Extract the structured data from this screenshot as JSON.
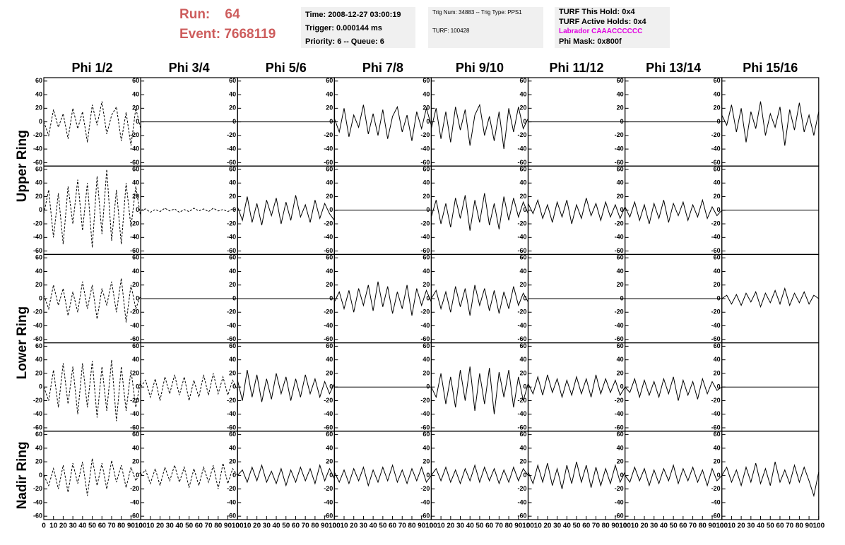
{
  "header": {
    "run": "Run:    64",
    "event": "Event: 7668119",
    "box1": [
      "Time: 2008-12-27 03:00:19",
      "Trigger: 0.000144 ms",
      "Priority: 6 -- Queue: 6"
    ],
    "box2": [
      "Trig Num: 34883 -- Trig Type: PPS1",
      "TURF: 100428"
    ],
    "box3": [
      "TURF This Hold: 0x4",
      "TURF Active Holds: 0x4",
      "Labrador CAAACCCCCC",
      "Phi Mask: 0x800f"
    ]
  },
  "chart_data": {
    "type": "line",
    "columns": [
      "Phi 1/2",
      "Phi 3/4",
      "Phi 5/6",
      "Phi 7/8",
      "Phi 9/10",
      "Phi 11/12",
      "Phi 13/14",
      "Phi 15/16"
    ],
    "ring_labels": [
      "Upper Ring",
      "Lower Ring",
      "Nadir Ring"
    ],
    "color": "#000000",
    "xlim": [
      0,
      100
    ],
    "xticks": [
      0,
      10,
      20,
      30,
      40,
      50,
      60,
      70,
      80,
      90,
      100
    ],
    "ylim": [
      -65,
      65
    ],
    "yticks": [
      -60,
      -40,
      -20,
      0,
      20,
      40,
      60
    ],
    "x": [
      0,
      5,
      10,
      15,
      20,
      25,
      30,
      35,
      40,
      45,
      50,
      55,
      60,
      65,
      70,
      75,
      80,
      85,
      90,
      95,
      100
    ],
    "panels": [
      [
        {
          "dashed": true,
          "values": [
            0,
            -20,
            18,
            -8,
            12,
            -25,
            20,
            -10,
            15,
            -30,
            25,
            -5,
            30,
            -18,
            10,
            22,
            -28,
            14,
            -35,
            20,
            -10
          ]
        },
        {
          "dashed": false,
          "values": [
            0,
            0,
            0,
            0,
            0,
            0,
            0,
            0,
            0,
            0,
            0,
            0,
            0,
            0,
            0,
            0,
            0,
            0,
            0,
            0,
            0
          ]
        },
        {
          "dashed": false,
          "values": [
            0,
            0,
            0,
            0,
            0,
            0,
            0,
            0,
            0,
            0,
            0,
            0,
            0,
            0,
            0,
            0,
            0,
            0,
            0,
            0,
            0
          ]
        },
        {
          "dashed": false,
          "values": [
            5,
            -15,
            20,
            -22,
            10,
            -8,
            25,
            -18,
            12,
            -20,
            18,
            -25,
            8,
            22,
            -15,
            10,
            -28,
            15,
            -10,
            20,
            -5
          ]
        },
        {
          "dashed": false,
          "values": [
            -10,
            20,
            -25,
            15,
            -30,
            22,
            -12,
            18,
            -35,
            10,
            25,
            -20,
            8,
            -28,
            15,
            -40,
            20,
            -15,
            22,
            -10,
            5
          ]
        },
        {
          "dashed": false,
          "values": [
            0,
            0,
            0,
            0,
            0,
            0,
            0,
            0,
            0,
            0,
            0,
            0,
            0,
            0,
            0,
            0,
            0,
            0,
            0,
            0,
            0
          ]
        },
        {
          "dashed": false,
          "values": [
            0,
            0,
            0,
            0,
            0,
            0,
            0,
            0,
            0,
            0,
            0,
            0,
            0,
            0,
            0,
            0,
            0,
            0,
            0,
            0,
            0
          ]
        },
        {
          "dashed": false,
          "values": [
            10,
            -5,
            25,
            -15,
            20,
            -30,
            15,
            -10,
            30,
            -20,
            12,
            -8,
            22,
            -35,
            18,
            -12,
            28,
            -15,
            10,
            -20,
            15
          ]
        }
      ],
      [
        {
          "dashed": true,
          "values": [
            -5,
            30,
            -40,
            25,
            -50,
            35,
            -20,
            45,
            -30,
            40,
            -55,
            50,
            -35,
            60,
            -45,
            30,
            -50,
            40,
            -25,
            35,
            -10
          ]
        },
        {
          "dashed": true,
          "values": [
            0,
            2,
            -3,
            1,
            -2,
            3,
            -1,
            2,
            -3,
            1,
            -2,
            3,
            -1,
            2,
            -2,
            3,
            -1,
            1,
            -2,
            2,
            0
          ]
        },
        {
          "dashed": false,
          "values": [
            5,
            -15,
            20,
            -18,
            10,
            -22,
            15,
            -8,
            18,
            -20,
            12,
            -15,
            22,
            -10,
            8,
            -18,
            15,
            -12,
            10,
            -5,
            -15
          ]
        },
        {
          "dashed": false,
          "values": [
            0,
            0,
            0,
            0,
            0,
            0,
            0,
            0,
            0,
            0,
            0,
            0,
            0,
            0,
            0,
            0,
            0,
            0,
            0,
            0,
            0
          ]
        },
        {
          "dashed": false,
          "values": [
            -10,
            15,
            -20,
            10,
            -25,
            18,
            -12,
            22,
            -30,
            15,
            -18,
            25,
            -22,
            10,
            -28,
            20,
            -15,
            18,
            -10,
            12,
            -5
          ]
        },
        {
          "dashed": false,
          "values": [
            10,
            -5,
            15,
            -12,
            8,
            -18,
            12,
            -10,
            15,
            -20,
            8,
            -12,
            18,
            -8,
            10,
            -15,
            12,
            -10,
            8,
            -12,
            5
          ]
        },
        {
          "dashed": false,
          "values": [
            5,
            -10,
            12,
            -15,
            8,
            -20,
            10,
            -12,
            15,
            -18,
            10,
            -8,
            12,
            -15,
            8,
            -10,
            15,
            -12,
            5,
            -8,
            0
          ]
        },
        {
          "dashed": false,
          "values": [
            0,
            0,
            0,
            0,
            0,
            0,
            0,
            0,
            0,
            0,
            0,
            0,
            0,
            0,
            0,
            0,
            0,
            0,
            0,
            0,
            0
          ]
        }
      ],
      [
        {
          "dashed": true,
          "values": [
            5,
            -15,
            20,
            -10,
            15,
            -25,
            10,
            -20,
            25,
            -15,
            20,
            -30,
            15,
            -10,
            25,
            -20,
            30,
            -35,
            20,
            -15,
            5
          ]
        },
        {
          "dashed": false,
          "values": [
            0,
            0,
            0,
            0,
            0,
            0,
            0,
            0,
            0,
            0,
            0,
            0,
            0,
            0,
            0,
            0,
            0,
            0,
            0,
            0,
            0
          ]
        },
        {
          "dashed": false,
          "values": [
            0,
            0,
            0,
            0,
            0,
            0,
            0,
            0,
            0,
            0,
            0,
            0,
            0,
            0,
            0,
            0,
            0,
            0,
            0,
            0,
            0
          ]
        },
        {
          "dashed": false,
          "values": [
            -5,
            10,
            -15,
            12,
            -20,
            15,
            -10,
            20,
            -18,
            25,
            -12,
            18,
            -22,
            10,
            -15,
            20,
            -25,
            15,
            -10,
            12,
            -5
          ]
        },
        {
          "dashed": false,
          "values": [
            0,
            12,
            -15,
            10,
            -20,
            18,
            -12,
            15,
            -25,
            20,
            -10,
            15,
            -18,
            12,
            -22,
            10,
            -15,
            18,
            -10,
            8,
            -5
          ]
        },
        {
          "dashed": false,
          "values": [
            0,
            0,
            0,
            0,
            0,
            0,
            0,
            0,
            0,
            0,
            0,
            0,
            0,
            0,
            0,
            0,
            0,
            0,
            0,
            0,
            0
          ]
        },
        {
          "dashed": false,
          "values": [
            0,
            0,
            0,
            0,
            0,
            0,
            0,
            0,
            0,
            0,
            0,
            0,
            0,
            0,
            0,
            0,
            0,
            0,
            0,
            0,
            0
          ]
        },
        {
          "dashed": false,
          "values": [
            0,
            5,
            -8,
            6,
            -10,
            8,
            -5,
            10,
            -12,
            8,
            -6,
            12,
            -8,
            15,
            -10,
            8,
            -6,
            10,
            -8,
            5,
            0
          ]
        }
      ],
      [
        {
          "dashed": true,
          "values": [
            0,
            -20,
            25,
            -30,
            35,
            -25,
            30,
            -40,
            35,
            -30,
            38,
            -45,
            30,
            -35,
            40,
            -50,
            30,
            -35,
            25,
            -30,
            10
          ]
        },
        {
          "dashed": true,
          "values": [
            0,
            10,
            -15,
            12,
            -20,
            15,
            -10,
            18,
            -12,
            15,
            -20,
            10,
            -15,
            18,
            -12,
            20,
            -10,
            15,
            -12,
            10,
            -5
          ]
        },
        {
          "dashed": false,
          "values": [
            10,
            -20,
            25,
            -15,
            18,
            -22,
            12,
            -18,
            20,
            -10,
            15,
            -20,
            12,
            -15,
            18,
            -10,
            12,
            -15,
            8,
            -10,
            5
          ]
        },
        {
          "dashed": false,
          "values": [
            0,
            0,
            0,
            0,
            0,
            0,
            0,
            0,
            0,
            0,
            0,
            0,
            0,
            0,
            0,
            0,
            0,
            0,
            0,
            0,
            0
          ]
        },
        {
          "dashed": false,
          "values": [
            0,
            -15,
            20,
            -25,
            15,
            -30,
            25,
            -20,
            30,
            -35,
            20,
            -25,
            28,
            -40,
            22,
            -15,
            25,
            -30,
            15,
            -20,
            5
          ]
        },
        {
          "dashed": false,
          "values": [
            5,
            -10,
            15,
            -12,
            18,
            -8,
            12,
            -15,
            10,
            -12,
            15,
            -10,
            12,
            -15,
            18,
            -10,
            12,
            -8,
            10,
            -12,
            0
          ]
        },
        {
          "dashed": false,
          "values": [
            0,
            -8,
            12,
            -15,
            10,
            -12,
            8,
            -15,
            12,
            -10,
            15,
            -20,
            10,
            -12,
            8,
            -18,
            12,
            -10,
            8,
            -5,
            0
          ]
        },
        {
          "dashed": false,
          "values": [
            0,
            0,
            0,
            0,
            0,
            0,
            0,
            0,
            0,
            0,
            0,
            0,
            0,
            0,
            0,
            0,
            0,
            0,
            0,
            0,
            0
          ]
        }
      ],
      [
        {
          "dashed": true,
          "values": [
            0,
            -15,
            10,
            -20,
            15,
            -25,
            18,
            -12,
            20,
            -30,
            25,
            -15,
            18,
            -20,
            22,
            -10,
            15,
            -18,
            12,
            -8,
            5
          ]
        },
        {
          "dashed": true,
          "values": [
            0,
            8,
            -12,
            10,
            -15,
            12,
            -8,
            15,
            -10,
            12,
            -18,
            10,
            -15,
            12,
            -10,
            15,
            -20,
            18,
            -12,
            10,
            0
          ]
        },
        {
          "dashed": false,
          "values": [
            0,
            8,
            -10,
            12,
            -8,
            15,
            -10,
            6,
            -12,
            10,
            -15,
            8,
            -10,
            12,
            -8,
            10,
            -12,
            15,
            -8,
            10,
            -5
          ]
        },
        {
          "dashed": false,
          "values": [
            5,
            -10,
            8,
            -12,
            10,
            -8,
            12,
            -15,
            8,
            -10,
            12,
            -8,
            15,
            -10,
            8,
            -12,
            10,
            -8,
            12,
            -10,
            0
          ]
        },
        {
          "dashed": false,
          "values": [
            0,
            10,
            -8,
            12,
            -10,
            8,
            -12,
            10,
            -8,
            15,
            -10,
            12,
            -8,
            10,
            -12,
            8,
            -10,
            12,
            -8,
            10,
            0
          ]
        },
        {
          "dashed": false,
          "values": [
            5,
            -12,
            15,
            -10,
            18,
            -15,
            10,
            -20,
            15,
            -12,
            20,
            -10,
            15,
            -18,
            12,
            -15,
            10,
            -12,
            15,
            -10,
            5
          ]
        },
        {
          "dashed": false,
          "values": [
            0,
            -10,
            12,
            -8,
            10,
            -15,
            8,
            -12,
            10,
            -8,
            15,
            -12,
            10,
            -8,
            12,
            -10,
            8,
            -15,
            10,
            -8,
            0
          ]
        },
        {
          "dashed": false,
          "values": [
            0,
            12,
            -10,
            8,
            -15,
            12,
            -10,
            18,
            -12,
            10,
            -15,
            20,
            -10,
            8,
            -12,
            15,
            -10,
            12,
            -8,
            -30,
            5
          ]
        }
      ]
    ]
  }
}
